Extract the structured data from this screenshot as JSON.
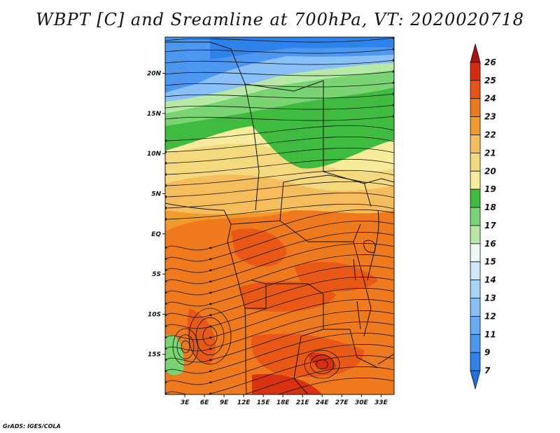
{
  "title": "WBPT [C] and Sreamline at 700hPa, VT: 2020020718",
  "credit": "GrADS: IGES/COLA",
  "map": {
    "lat_labels": [
      "20N",
      "15N",
      "10N",
      "5N",
      "EQ",
      "5S",
      "10S",
      "15S"
    ],
    "lon_labels": [
      "3E",
      "6E",
      "9E",
      "12E",
      "15E",
      "18E",
      "21E",
      "24E",
      "27E",
      "30E",
      "33E"
    ],
    "lat_range": [
      -20,
      24.5
    ],
    "lon_range": [
      0,
      35
    ]
  },
  "colorbar": {
    "levels": [
      "7",
      "9",
      "11",
      "12",
      "13",
      "14",
      "15",
      "16",
      "17",
      "18",
      "19",
      "20",
      "21",
      "22",
      "23",
      "24",
      "25",
      "26"
    ],
    "colors": [
      "#1e6fe0",
      "#2f82ea",
      "#4c97f0",
      "#68abf4",
      "#88c0f7",
      "#a9d4fa",
      "#cfe9fc",
      "#eefaf4",
      "#b6e8a6",
      "#7bd474",
      "#3fbb40",
      "#f6ec9c",
      "#f5d97f",
      "#f5bd5c",
      "#f39a2d",
      "#ef7a1e",
      "#e85414",
      "#d72b10",
      "#b01008"
    ]
  }
}
